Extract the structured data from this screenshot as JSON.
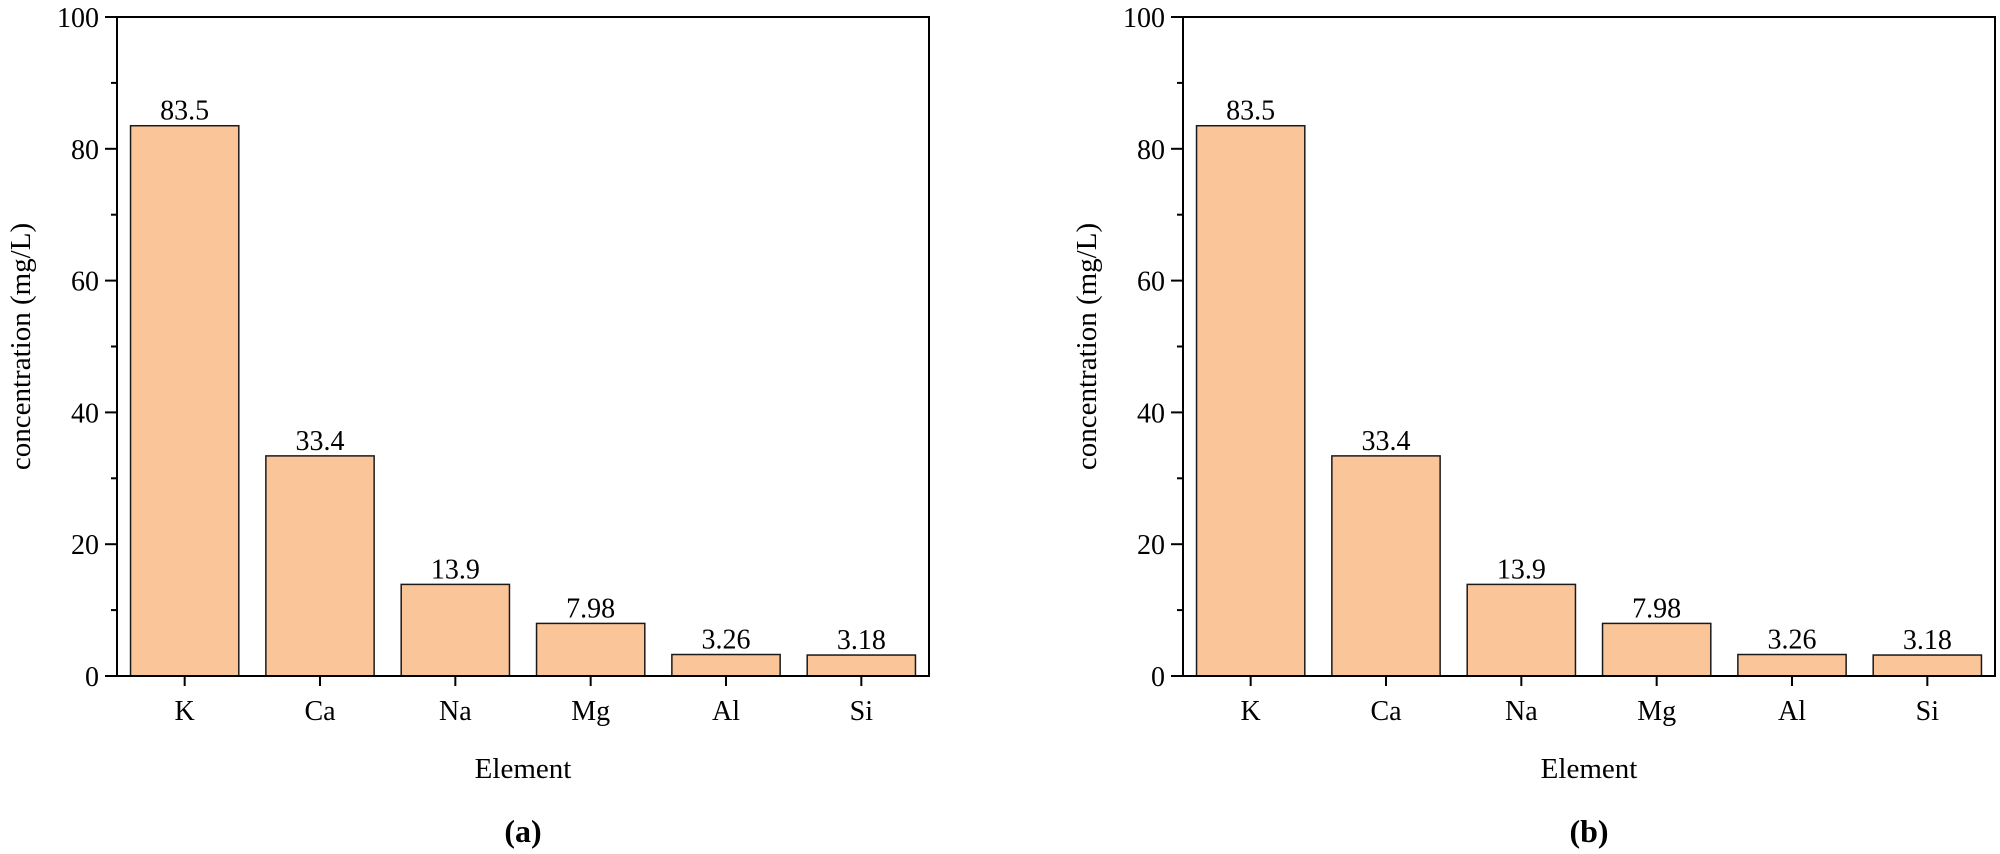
{
  "chart_data": [
    {
      "type": "bar",
      "panel_label": "(a)",
      "categories": [
        "K",
        "Ca",
        "Na",
        "Mg",
        "Al",
        "Si"
      ],
      "values": [
        83.5,
        33.4,
        13.9,
        7.98,
        3.26,
        3.18
      ],
      "data_labels": [
        "83.5",
        "33.4",
        "13.9",
        "7.98",
        "3.26",
        "3.18"
      ],
      "xlabel": "Element",
      "ylabel": "concentration (mg/L)",
      "ylim": [
        0,
        100
      ],
      "yticks": [
        0,
        20,
        40,
        60,
        80,
        100
      ],
      "grid": false,
      "bar_color": "#FAC699"
    },
    {
      "type": "bar",
      "panel_label": "(b)",
      "categories": [
        "K",
        "Ca",
        "Na",
        "Mg",
        "Al",
        "Si"
      ],
      "values": [
        83.5,
        33.4,
        13.9,
        7.98,
        3.26,
        3.18
      ],
      "data_labels": [
        "83.5",
        "33.4",
        "13.9",
        "7.98",
        "3.26",
        "3.18"
      ],
      "xlabel": "Element",
      "ylabel": "concentration (mg/L)",
      "ylim": [
        0,
        100
      ],
      "yticks": [
        0,
        20,
        40,
        60,
        80,
        100
      ],
      "grid": false,
      "bar_color": "#FAC699"
    }
  ]
}
